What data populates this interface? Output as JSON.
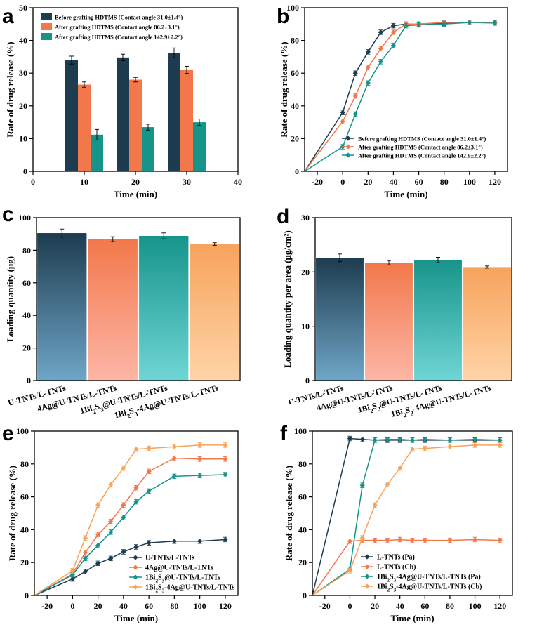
{
  "chart_data": [
    {
      "panel": "a",
      "type": "bar",
      "xlabel": "Time (min)",
      "ylabel": "Rate of drug release (%)",
      "xlim": [
        0,
        40
      ],
      "ylim": [
        0,
        50
      ],
      "xticks": [
        0,
        10,
        20,
        30,
        40
      ],
      "yticks": [
        0,
        10,
        20,
        30,
        40,
        50
      ],
      "categories": [
        10,
        20,
        30
      ],
      "series": [
        {
          "name": "Before grafting HDTMS (Contact angle 31.0±1.4°)",
          "color": "#1d3c4f",
          "values": [
            34.0,
            34.8,
            36.2
          ],
          "errors": [
            1.2,
            1.0,
            1.5
          ]
        },
        {
          "name": "After grafting HDTMS (Contact angle 86.2±3.1°)",
          "color": "#f2784b",
          "values": [
            26.5,
            28.0,
            31.0
          ],
          "errors": [
            0.8,
            0.7,
            1.1
          ]
        },
        {
          "name": "After grafting HDTMS (Contact angle 142.9±2.2°)",
          "color": "#17948a",
          "values": [
            11.2,
            13.5,
            15.0
          ],
          "errors": [
            1.6,
            0.9,
            1.0
          ]
        }
      ],
      "legend": "top-left"
    },
    {
      "panel": "b",
      "type": "line",
      "xlabel": "Time (min)",
      "ylabel": "Rate of drug release (%)",
      "xlim": [
        -30,
        130
      ],
      "ylim": [
        0,
        100
      ],
      "xticks": [
        -20,
        0,
        20,
        40,
        60,
        80,
        100,
        120
      ],
      "yticks": [
        0,
        20,
        40,
        60,
        80,
        100
      ],
      "x": [
        -30,
        0,
        10,
        20,
        30,
        40,
        50,
        60,
        80,
        100,
        120
      ],
      "series": [
        {
          "name": "Before grafting HDTMS (Contact angle 31.0±1.4°)",
          "color": "#1d3c4f",
          "values": [
            0,
            36,
            60,
            73,
            85,
            89,
            90,
            90,
            90.5,
            91,
            91
          ]
        },
        {
          "name": "After grafting HDTMS (Contact angle 86.2±3.1°)",
          "color": "#f2784b",
          "values": [
            0,
            30.5,
            46,
            63.5,
            75,
            85,
            90,
            90,
            91,
            91,
            90.5
          ]
        },
        {
          "name": "After grafting HDTMS (Contact angle 142.9±2.2°)",
          "color": "#17948a",
          "values": [
            0,
            15,
            35,
            54,
            67,
            77,
            89,
            89.5,
            90,
            91,
            91
          ]
        }
      ],
      "legend": "bottom-right"
    },
    {
      "panel": "c",
      "type": "bar",
      "xlabel": "",
      "ylabel": "Loading quantity (μg)",
      "ylim": [
        0,
        100
      ],
      "yticks": [
        0,
        20,
        40,
        60,
        80,
        100
      ],
      "categories": [
        "U-TNTs/L-TNTs",
        "4Ag@U-TNTs/L-TNTs",
        "1Bi2S3@U-TNTs/L-TNTs",
        "1Bi2S3-4Ag@U-TNTs/L-TNTs"
      ],
      "values": [
        90.5,
        86.8,
        88.8,
        83.8
      ],
      "errors": [
        2.5,
        1.5,
        1.8,
        0.8
      ],
      "colors": [
        [
          "#1d3c4f",
          "#6fa6c8"
        ],
        [
          "#f2784b",
          "#fdb6a6"
        ],
        [
          "#17948a",
          "#6fd6d6"
        ],
        [
          "#f7a35c",
          "#ffd4a8"
        ]
      ]
    },
    {
      "panel": "d",
      "type": "bar",
      "xlabel": "",
      "ylabel": "Loading quantity per area (μg/cm²)",
      "ylim": [
        0,
        30
      ],
      "yticks": [
        0,
        10,
        20,
        30
      ],
      "categories": [
        "U-TNTs/L-TNTs",
        "4Ag@U-TNTs/L-TNTs",
        "1Bi2S3@U-TNTs/L-TNTs",
        "1Bi2S3-4Ag@U-TNTs/L-TNTs"
      ],
      "values": [
        22.6,
        21.7,
        22.2,
        20.9
      ],
      "errors": [
        0.7,
        0.4,
        0.5,
        0.2
      ],
      "colors": [
        [
          "#1d3c4f",
          "#6fa6c8"
        ],
        [
          "#f2784b",
          "#fdb6a6"
        ],
        [
          "#17948a",
          "#6fd6d6"
        ],
        [
          "#f7a35c",
          "#ffd4a8"
        ]
      ]
    },
    {
      "panel": "e",
      "type": "line",
      "xlabel": "Time (min)",
      "ylabel": "Rate of drug release (%)",
      "xlim": [
        -30,
        130
      ],
      "ylim": [
        0,
        100
      ],
      "xticks": [
        -20,
        0,
        20,
        40,
        60,
        80,
        100,
        120
      ],
      "yticks": [
        0,
        20,
        40,
        60,
        80,
        100
      ],
      "x": [
        -30,
        0,
        10,
        20,
        30,
        40,
        50,
        60,
        80,
        100,
        120
      ],
      "series": [
        {
          "name": "U-TNTs/L-TNTs",
          "color": "#1d3c4f",
          "values": [
            0,
            10,
            14.5,
            19.5,
            22.5,
            26.5,
            29.5,
            32,
            33,
            33,
            34
          ]
        },
        {
          "name": "4Ag@U-TNTs/L-TNTs",
          "color": "#f2784b",
          "values": [
            0,
            13,
            26,
            37,
            45,
            55,
            65.5,
            75.5,
            83.5,
            83,
            83
          ]
        },
        {
          "name": "1Bi2S3@U-TNTs/L-TNTs",
          "color": "#17948a",
          "values": [
            0,
            12.5,
            22.5,
            30.5,
            38.5,
            47.5,
            57,
            63.5,
            72.5,
            73,
            73.5
          ]
        },
        {
          "name": "1Bi2S3-4Ag@U-TNTs/L-TNTs",
          "color": "#f7a35c",
          "values": [
            0,
            15,
            35,
            55,
            67.5,
            77.5,
            89,
            89.5,
            90.5,
            91.5,
            91.5
          ]
        }
      ],
      "legend": "bottom-right"
    },
    {
      "panel": "f",
      "type": "line",
      "xlabel": "Time (min)",
      "ylabel": "Rate of drug release (%)",
      "xlim": [
        -30,
        130
      ],
      "ylim": [
        0,
        100
      ],
      "xticks": [
        -20,
        0,
        20,
        40,
        60,
        80,
        100,
        120
      ],
      "yticks": [
        0,
        20,
        40,
        60,
        80,
        100
      ],
      "series": [
        {
          "name": "L-TNTs (Pa)",
          "color": "#1d3c4f",
          "x": [
            -30,
            0,
            10,
            20,
            30,
            40,
            50,
            60,
            80,
            100,
            120
          ],
          "values": [
            0,
            95.5,
            95,
            94.5,
            94.5,
            94.5,
            94.5,
            94.5,
            94.5,
            94.5,
            94.5
          ]
        },
        {
          "name": "L-TNTs (Cb)",
          "color": "#f2784b",
          "x": [
            -30,
            0,
            10,
            20,
            30,
            40,
            50,
            60,
            80,
            100,
            120
          ],
          "values": [
            0,
            33,
            33.5,
            33.5,
            33.5,
            34,
            33.5,
            33.5,
            33.5,
            34,
            33.5
          ]
        },
        {
          "name": "1Bi2S3-4Ag@U-TNTs/L-TNTs (Pa)",
          "color": "#17948a",
          "x": [
            -30,
            0,
            10,
            20,
            30,
            40,
            50,
            60,
            80,
            100,
            120
          ],
          "values": [
            0,
            16,
            67,
            94.5,
            95,
            95,
            94.5,
            95,
            94.5,
            95,
            94.5
          ]
        },
        {
          "name": "1Bi2S3-4Ag@U-TNTs/L-TNTs (Cb)",
          "color": "#f7a35c",
          "x": [
            -30,
            0,
            10,
            20,
            30,
            40,
            50,
            60,
            80,
            100,
            120
          ],
          "values": [
            0,
            15,
            35,
            55,
            67.5,
            77.5,
            89,
            89.5,
            90.5,
            91.5,
            91.5
          ]
        }
      ],
      "legend": "bottom-right"
    }
  ]
}
